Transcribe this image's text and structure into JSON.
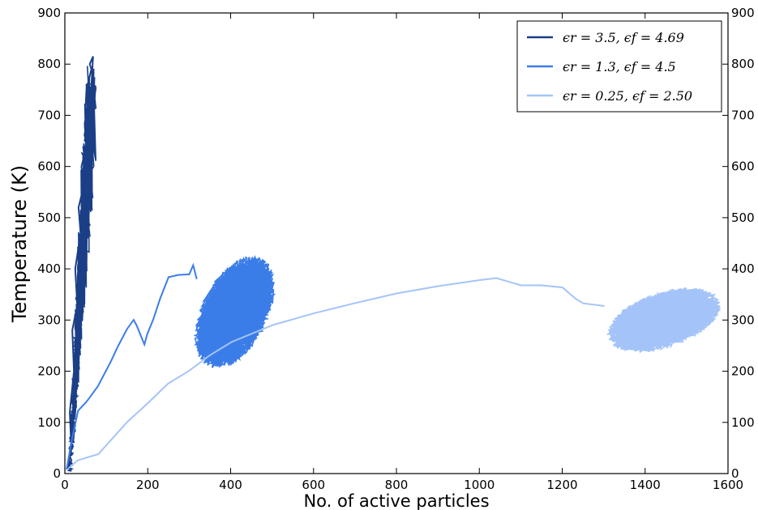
{
  "chart_data": {
    "type": "line",
    "title": "",
    "xlabel": "No. of active particles",
    "ylabel": "Temperature (K)",
    "xlim": [
      0,
      1600
    ],
    "ylim": [
      0,
      900
    ],
    "xticks": [
      0,
      200,
      400,
      600,
      800,
      1000,
      1200,
      1400,
      1600
    ],
    "yticks": [
      0,
      100,
      200,
      300,
      400,
      500,
      600,
      700,
      800,
      900
    ],
    "right_axis_ticks": true,
    "grid": false,
    "legend_position": "top-right",
    "series": [
      {
        "name": "ϵr = 3.5, ϵf = 4.69",
        "color": "#1a3f87",
        "style": "dense-oscillation",
        "x": [
          8,
          15,
          12,
          22,
          18,
          30,
          25,
          38,
          33,
          45,
          40,
          52,
          48,
          58,
          55,
          64,
          60,
          68,
          62,
          70,
          60,
          65
        ],
        "y": [
          10,
          60,
          120,
          200,
          280,
          330,
          400,
          470,
          520,
          560,
          600,
          640,
          680,
          720,
          760,
          790,
          800,
          815,
          730,
          650,
          580,
          520
        ],
        "x_range": [
          5,
          75
        ],
        "y_range": [
          5,
          820
        ]
      },
      {
        "name": "ϵr = 1.3, ϵf = 4.5",
        "color": "#3b7de8",
        "style": "trajectory-then-cluster",
        "x": [
          5,
          15,
          30,
          50,
          60,
          80,
          110,
          130,
          150,
          165,
          175,
          190,
          200,
          215,
          230,
          250,
          275,
          300,
          310,
          320
        ],
        "y": [
          5,
          60,
          120,
          140,
          150,
          170,
          220,
          250,
          280,
          300,
          290,
          250,
          270,
          300,
          340,
          385,
          388,
          390,
          410,
          380
        ],
        "cluster": {
          "x_center": 410,
          "y_center": 315,
          "x_range": [
            320,
            510
          ],
          "y_range": [
            210,
            420
          ]
        }
      },
      {
        "name": "ϵr = 0.25, ϵf = 2.50",
        "color": "#a4c4f9",
        "style": "curve-then-cluster",
        "x": [
          10,
          30,
          80,
          150,
          200,
          250,
          300,
          350,
          400,
          500,
          600,
          700,
          800,
          900,
          1000,
          1040,
          1100,
          1150,
          1200,
          1230,
          1250,
          1300
        ],
        "y": [
          10,
          25,
          35,
          100,
          140,
          175,
          200,
          230,
          255,
          290,
          315,
          335,
          350,
          365,
          380,
          380,
          370,
          368,
          365,
          345,
          330,
          325
        ],
        "cluster": {
          "x_center": 1445,
          "y_center": 300,
          "x_range": [
            1310,
            1580
          ],
          "y_range": [
            240,
            360
          ]
        }
      }
    ]
  }
}
